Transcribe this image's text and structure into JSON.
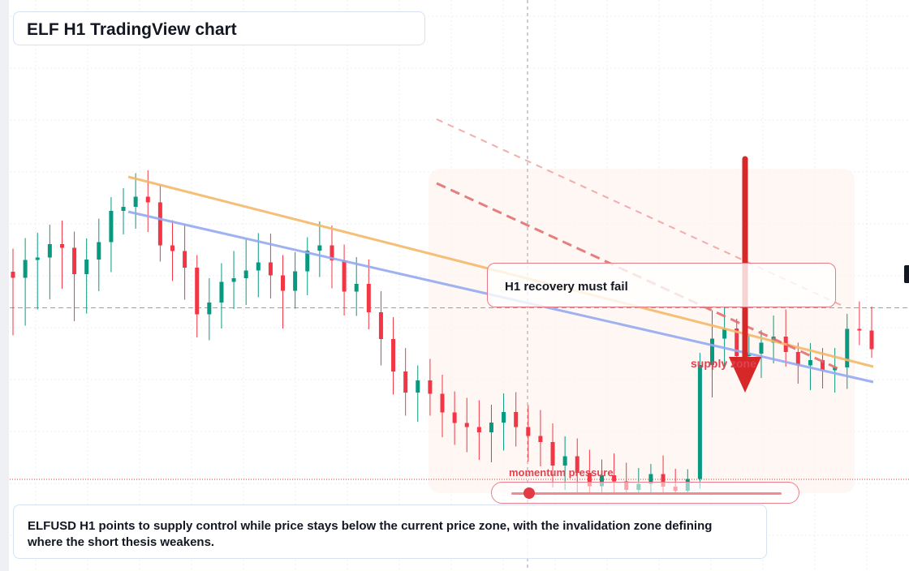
{
  "title": "ELF H1 TradingView chart",
  "callout": {
    "text": "H1 recovery must fail"
  },
  "labels": {
    "supply": "supply zone",
    "momentum": "momentum pressure"
  },
  "description": "ELFUSD H1 points to supply control while price stays below the current price zone, with the invalidation zone defining where the short thesis weakens.",
  "momentum": {
    "level": 0.04
  },
  "colors": {
    "up": "#089981",
    "down": "#f23645",
    "trend_upper": "#f5b96a",
    "trend_lower": "#94aaf0",
    "arrow": "#d62828",
    "annotation": "#e0434e"
  },
  "chart_data": {
    "type": "candlestick",
    "timeframe": "H1",
    "symbol": "ELFUSD",
    "ylim": [
      0,
      100
    ],
    "current_price": 46.1,
    "reference_price": 33.8,
    "grid": true,
    "candles": [
      [
        55.0,
        60.7,
        39.3,
        53.5
      ],
      [
        53.5,
        63.3,
        41.7,
        57.9
      ],
      [
        57.9,
        64.6,
        45.7,
        58.5
      ],
      [
        58.5,
        66.6,
        48.2,
        61.8
      ],
      [
        61.8,
        67.6,
        50.8,
        60.9
      ],
      [
        60.9,
        64.9,
        42.8,
        54.4
      ],
      [
        54.4,
        63.2,
        44.7,
        58.0
      ],
      [
        58.0,
        68.1,
        50.2,
        62.3
      ],
      [
        62.3,
        73.4,
        54.9,
        70.0
      ],
      [
        70.0,
        75.6,
        64.2,
        71.0
      ],
      [
        71.0,
        79.3,
        65.6,
        73.5
      ],
      [
        73.5,
        80.0,
        64.8,
        72.1
      ],
      [
        72.1,
        76.4,
        57.5,
        61.5
      ],
      [
        61.5,
        67.7,
        52.7,
        60.1
      ],
      [
        60.1,
        66.6,
        48.1,
        56.0
      ],
      [
        56.0,
        59.1,
        38.8,
        44.5
      ],
      [
        44.5,
        53.4,
        38.1,
        47.4
      ],
      [
        47.4,
        57.1,
        41.0,
        52.5
      ],
      [
        52.5,
        60.1,
        45.8,
        53.4
      ],
      [
        53.4,
        62.9,
        46.8,
        55.3
      ],
      [
        55.3,
        64.5,
        48.7,
        57.3
      ],
      [
        57.3,
        64.4,
        48.4,
        54.1
      ],
      [
        54.1,
        59.1,
        41.0,
        50.3
      ],
      [
        50.3,
        59.8,
        45.9,
        55.1
      ],
      [
        55.1,
        63.5,
        49.2,
        60.2
      ],
      [
        60.2,
        67.4,
        53.7,
        61.5
      ],
      [
        61.5,
        66.4,
        50.9,
        57.8
      ],
      [
        57.8,
        61.7,
        44.2,
        50.1
      ],
      [
        50.1,
        58.6,
        44.1,
        52.0
      ],
      [
        52.0,
        58.0,
        40.8,
        45.0
      ],
      [
        45.0,
        50.2,
        31.9,
        38.4
      ],
      [
        38.4,
        43.8,
        24.7,
        30.4
      ],
      [
        30.4,
        36.2,
        19.5,
        25.2
      ],
      [
        25.2,
        31.9,
        18.0,
        28.2
      ],
      [
        28.2,
        33.5,
        19.5,
        24.9
      ],
      [
        24.9,
        29.6,
        14.2,
        20.3
      ],
      [
        20.3,
        25.5,
        12.3,
        17.7
      ],
      [
        17.7,
        23.9,
        10.5,
        16.7
      ],
      [
        16.7,
        23.3,
        8.6,
        15.4
      ],
      [
        15.4,
        22.2,
        8.0,
        17.8
      ],
      [
        17.8,
        25.0,
        10.9,
        20.4
      ],
      [
        20.4,
        25.3,
        11.9,
        16.7
      ],
      [
        16.7,
        22.1,
        8.2,
        14.5
      ],
      [
        14.5,
        20.9,
        7.0,
        13.0
      ],
      [
        13.0,
        17.6,
        1.8,
        7.2
      ],
      [
        7.2,
        14.4,
        1.2,
        9.5
      ],
      [
        9.5,
        13.9,
        0.0,
        5.4
      ],
      [
        5.4,
        11.1,
        0.0,
        2.1
      ],
      [
        2.1,
        8.7,
        0.0,
        4.8
      ],
      [
        4.8,
        10.2,
        0.0,
        3.3
      ],
      [
        3.3,
        7.9,
        0.0,
        1.2
      ],
      [
        1.2,
        6.6,
        0.0,
        2.7
      ],
      [
        2.7,
        7.6,
        0.0,
        5.1
      ],
      [
        5.1,
        9.7,
        0.0,
        2.0
      ],
      [
        2.0,
        6.4,
        0.0,
        1.0
      ],
      [
        1.0,
        6.3,
        0.0,
        3.9
      ],
      [
        3.9,
        35.0,
        1.5,
        32.0
      ],
      [
        32.0,
        45.5,
        24.0,
        38.5
      ],
      [
        38.5,
        46.4,
        31.3,
        41.0
      ],
      [
        41.0,
        43.4,
        30.6,
        34.2
      ],
      [
        34.2,
        39.7,
        27.9,
        34.8
      ],
      [
        34.8,
        40.6,
        28.8,
        37.5
      ],
      [
        37.5,
        44.2,
        32.4,
        39.0
      ],
      [
        39.0,
        45.7,
        31.6,
        35.2
      ],
      [
        35.2,
        37.5,
        27.4,
        31.9
      ],
      [
        31.9,
        37.4,
        25.8,
        33.2
      ],
      [
        33.2,
        36.2,
        26.2,
        30.7
      ],
      [
        30.7,
        36.2,
        25.2,
        31.4
      ],
      [
        31.4,
        44.6,
        26.1,
        40.9
      ],
      [
        40.9,
        47.7,
        36.9,
        40.5
      ],
      [
        40.5,
        46.4,
        33.8,
        35.9
      ]
    ]
  }
}
